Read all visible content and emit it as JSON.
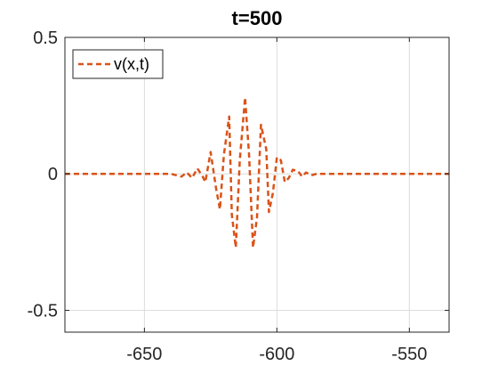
{
  "chart_data": {
    "type": "line",
    "title": "t=500",
    "xlabel": "",
    "ylabel": "",
    "xlim": [
      -680,
      -535
    ],
    "ylim": [
      -0.58,
      0.5
    ],
    "grid": true,
    "legend_position": "top-left",
    "x_ticks": [
      -650,
      -600,
      -550
    ],
    "x_tick_labels": [
      "-650",
      "-600",
      "-550"
    ],
    "y_ticks": [
      0.5,
      0,
      -0.5
    ],
    "y_tick_labels": [
      "0.5",
      "0",
      "-0.5"
    ],
    "series": [
      {
        "name": "v(x,t)",
        "color": "#D95319",
        "line_style": "dashed",
        "x": [
          -680,
          -640,
          -636,
          -634,
          -632,
          -630,
          -628,
          -627,
          -625,
          -623,
          -621.5,
          -620,
          -618,
          -617,
          -615.5,
          -614,
          -612,
          -610.5,
          -609,
          -607.5,
          -606,
          -604,
          -603,
          -601.5,
          -600,
          -598.5,
          -597,
          -595.5,
          -594,
          -592,
          -590.5,
          -589,
          -587,
          -585,
          -583,
          -580,
          -577,
          -573,
          -568,
          -535
        ],
        "y": [
          0,
          0,
          -0.01,
          0.005,
          -0.015,
          0.02,
          -0.01,
          -0.03,
          0.08,
          -0.05,
          -0.13,
          0.07,
          0.21,
          -0.15,
          -0.27,
          0.05,
          0.28,
          0.07,
          -0.27,
          -0.16,
          0.18,
          0.09,
          -0.14,
          -0.07,
          0.06,
          0.05,
          -0.03,
          -0.015,
          0.015,
          0.01,
          -0.01,
          0.005,
          -0.005,
          0,
          0,
          0,
          0,
          0,
          0,
          0
        ]
      }
    ]
  }
}
